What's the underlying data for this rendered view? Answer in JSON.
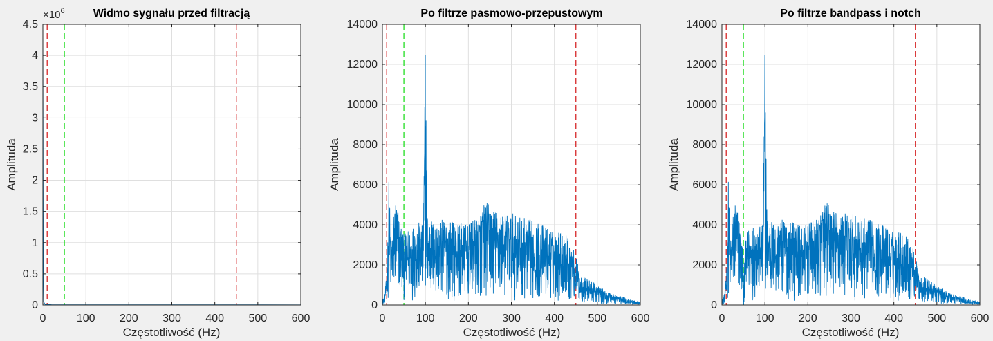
{
  "figure": {
    "background": "#f0f0f0",
    "colors": {
      "signal": "#0072bd",
      "red_line": "#d62728",
      "green_line": "#22dd22",
      "grid": "#dfdfdf",
      "axes": "#262626"
    }
  },
  "chart_data": [
    {
      "type": "line",
      "title": "Widmo sygnału przed filtracją",
      "xlabel": "Częstotliwość (Hz)",
      "ylabel": "Amplituda",
      "xlim": [
        0,
        600
      ],
      "ylim": [
        0,
        4.5
      ],
      "y_exponent_label": "×10",
      "y_exponent_power": "6",
      "x_ticks": [
        "0",
        "100",
        "200",
        "300",
        "400",
        "500",
        "600"
      ],
      "y_ticks": [
        "0",
        "0.5",
        "1",
        "1.5",
        "2",
        "2.5",
        "3",
        "3.5",
        "4",
        "4.5"
      ],
      "grid": true,
      "vertical_lines": [
        {
          "x": 10,
          "color": "red"
        },
        {
          "x": 50,
          "color": "green"
        },
        {
          "x": 450,
          "color": "red"
        }
      ],
      "series": [
        {
          "x": [
            0,
            1,
            2,
            5,
            20,
            100,
            300,
            500,
            600
          ],
          "y": [
            4.5,
            0.6,
            0.05,
            0.01,
            0.005,
            0.004,
            0.004,
            0.003,
            0.002
          ]
        }
      ]
    },
    {
      "type": "line",
      "title": "Po filtrze pasmowo-przepustowym",
      "xlabel": "Częstotliwość (Hz)",
      "ylabel": "Amplituda",
      "xlim": [
        0,
        600
      ],
      "ylim": [
        0,
        14000
      ],
      "x_ticks": [
        "0",
        "100",
        "200",
        "300",
        "400",
        "500",
        "600"
      ],
      "y_ticks": [
        "0",
        "2000",
        "4000",
        "6000",
        "8000",
        "10000",
        "12000",
        "14000"
      ],
      "grid": true,
      "vertical_lines": [
        {
          "x": 10,
          "color": "red"
        },
        {
          "x": 50,
          "color": "green"
        },
        {
          "x": 450,
          "color": "red"
        }
      ],
      "series": [
        {
          "x": [
            0,
            5,
            10,
            12,
            15,
            20,
            30,
            40,
            50,
            60,
            80,
            95,
            100,
            105,
            120,
            150,
            180,
            200,
            220,
            240,
            260,
            280,
            300,
            320,
            340,
            360,
            380,
            400,
            420,
            440,
            450,
            460,
            480,
            500,
            520,
            540,
            560,
            580,
            600
          ],
          "y": [
            200,
            500,
            1500,
            3000,
            6300,
            3200,
            5500,
            4500,
            3500,
            3800,
            4200,
            4000,
            12700,
            4500,
            4200,
            4300,
            4100,
            4000,
            4400,
            5200,
            4800,
            4600,
            4600,
            4400,
            4300,
            4100,
            4000,
            3600,
            3800,
            3100,
            2500,
            1500,
            1300,
            1000,
            700,
            550,
            400,
            250,
            150
          ]
        }
      ]
    },
    {
      "type": "line",
      "title": "Po filtrze bandpass i notch",
      "xlabel": "Częstotliwość (Hz)",
      "ylabel": "Amplituda",
      "xlim": [
        0,
        600
      ],
      "ylim": [
        0,
        14000
      ],
      "x_ticks": [
        "0",
        "100",
        "200",
        "300",
        "400",
        "500",
        "600"
      ],
      "y_ticks": [
        "0",
        "2000",
        "4000",
        "6000",
        "8000",
        "10000",
        "12000",
        "14000"
      ],
      "grid": true,
      "vertical_lines": [
        {
          "x": 10,
          "color": "red"
        },
        {
          "x": 50,
          "color": "green"
        },
        {
          "x": 450,
          "color": "red"
        }
      ],
      "series": [
        {
          "x": [
            0,
            5,
            10,
            12,
            15,
            20,
            30,
            40,
            48,
            50,
            52,
            60,
            80,
            95,
            100,
            105,
            120,
            150,
            180,
            200,
            220,
            240,
            260,
            280,
            300,
            320,
            340,
            360,
            380,
            400,
            420,
            440,
            450,
            460,
            480,
            500,
            520,
            540,
            560,
            580,
            600
          ],
          "y": [
            200,
            500,
            1500,
            3000,
            6300,
            3200,
            5500,
            4500,
            3000,
            0,
            3000,
            3800,
            4200,
            4000,
            12700,
            4500,
            4200,
            4300,
            4100,
            4000,
            4400,
            5200,
            4800,
            4600,
            4600,
            4400,
            4300,
            4100,
            4000,
            3600,
            3800,
            3100,
            2500,
            1500,
            1300,
            1000,
            700,
            550,
            400,
            250,
            150
          ]
        }
      ]
    }
  ]
}
